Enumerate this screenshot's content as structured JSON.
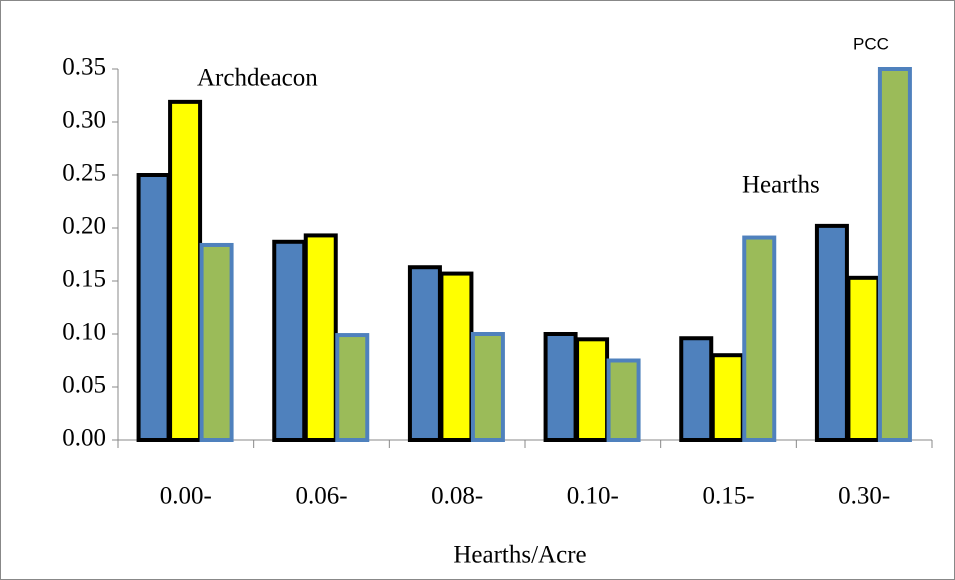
{
  "chart_data": {
    "type": "bar",
    "x_label": "Hearths/Acre",
    "categories": [
      "0.00-",
      "0.06-",
      "0.08-",
      "0.10-",
      "0.15-",
      "0.30-"
    ],
    "series": [
      {
        "color": "#4f81bd",
        "border": "#000000",
        "values": [
          0.25,
          0.187,
          0.163,
          0.1,
          0.096,
          0.202
        ]
      },
      {
        "color": "#ffff00",
        "border": "#000000",
        "values": [
          0.319,
          0.193,
          0.157,
          0.095,
          0.08,
          0.153
        ]
      },
      {
        "color": "#9bbb59",
        "border": "#4f81bd",
        "values": [
          0.184,
          0.099,
          0.1,
          0.075,
          0.191,
          0.35
        ]
      }
    ],
    "annotations": [
      "Archdeacon",
      "Hearths",
      "PCC"
    ],
    "ylim": [
      0,
      0.35
    ],
    "yticks": [
      {
        "value": 0,
        "label": "0.00"
      },
      {
        "value": 0.05,
        "label": "0.05"
      },
      {
        "value": 0.1,
        "label": "0.10"
      },
      {
        "value": 0.15,
        "label": "0.15"
      },
      {
        "value": 0.2,
        "label": "0.20"
      },
      {
        "value": 0.25,
        "label": "0.25"
      },
      {
        "value": 0.3,
        "label": "0.30"
      },
      {
        "value": 0.35,
        "label": "0.35"
      }
    ],
    "grid": false
  }
}
